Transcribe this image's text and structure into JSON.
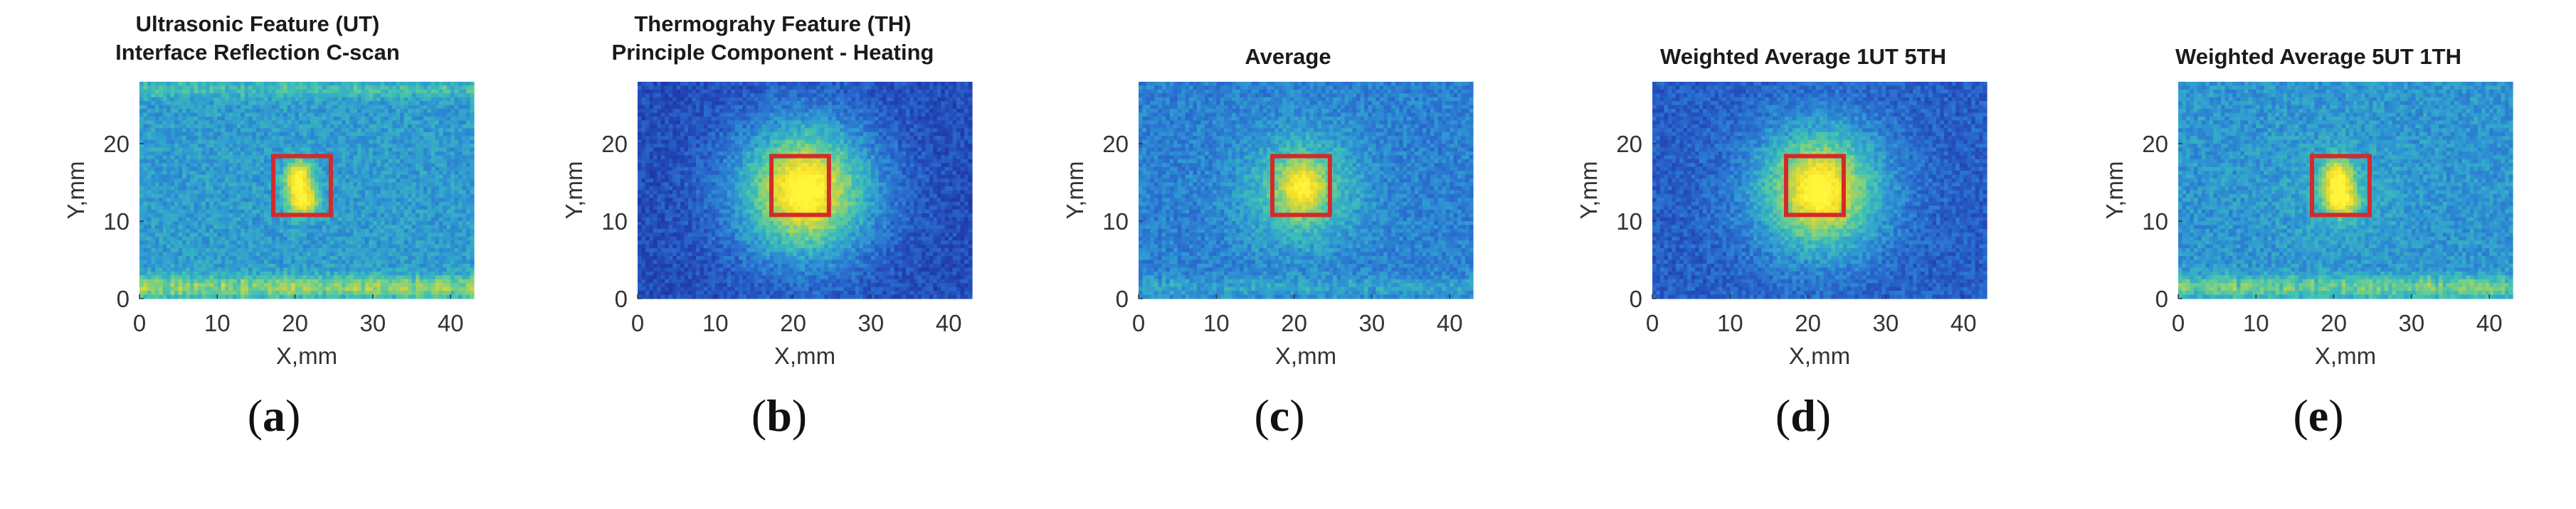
{
  "colors": {
    "colormap": [
      "#1c2a8c",
      "#2247b7",
      "#2a6fd0",
      "#2f9bd2",
      "#3ec0b6",
      "#7fd17f",
      "#c9d444",
      "#f7e128",
      "#fff53a"
    ],
    "defect_box": "#d42a2a"
  },
  "chart_data": [
    {
      "type": "heatmap",
      "id": "a",
      "title_lines": [
        "Ultrasonic Feature (UT)",
        "Interface Reflection C-scan"
      ],
      "xlabel": "X,mm",
      "ylabel": "Y,mm",
      "xlim": [
        0,
        43
      ],
      "ylim": [
        0,
        28
      ],
      "xticks": [
        0,
        10,
        20,
        30,
        40
      ],
      "yticks": [
        0,
        10,
        20
      ],
      "colormap": "parula",
      "background_level": 0.38,
      "hotspots": [
        {
          "x": 20.5,
          "y": 15.5,
          "sx": 1.2,
          "sy": 1.6,
          "amp": 0.62
        },
        {
          "x": 21,
          "y": 12.5,
          "sx": 1.4,
          "sy": 1.2,
          "amp": 0.55
        }
      ],
      "bands": [
        {
          "y": 1.5,
          "width": 1.0,
          "x_from": 0,
          "x_to": 43,
          "amp": 0.28
        },
        {
          "y": 27,
          "width": 0.8,
          "x_from": 0,
          "x_to": 43,
          "amp": 0.12
        }
      ],
      "defect_box": {
        "x0": 17.2,
        "x1": 24.6,
        "y0": 10.8,
        "y1": 18.4
      },
      "panel_label": "a"
    },
    {
      "type": "heatmap",
      "id": "b",
      "title_lines": [
        "Thermograhy Feature (TH)",
        "Principle Component - Heating"
      ],
      "xlabel": "X,mm",
      "ylabel": "Y,mm",
      "xlim": [
        0,
        43
      ],
      "ylim": [
        0,
        28
      ],
      "xticks": [
        0,
        10,
        20,
        30,
        40
      ],
      "yticks": [
        0,
        10,
        20
      ],
      "colormap": "parula",
      "background_level": 0.14,
      "hotspots": [
        {
          "x": 21.5,
          "y": 14,
          "sx": 6.5,
          "sy": 6.5,
          "amp": 0.62
        },
        {
          "x": 21.5,
          "y": 14,
          "sx": 2.5,
          "sy": 2.8,
          "amp": 0.35
        }
      ],
      "bands": [],
      "defect_box": {
        "x0": 17.2,
        "x1": 24.6,
        "y0": 10.8,
        "y1": 18.4
      },
      "panel_label": "b"
    },
    {
      "type": "heatmap",
      "id": "c",
      "title_lines": [
        "Average"
      ],
      "xlabel": "X,mm",
      "ylabel": "Y,mm",
      "xlim": [
        0,
        43
      ],
      "ylim": [
        0,
        28
      ],
      "xticks": [
        0,
        10,
        20,
        30,
        40
      ],
      "yticks": [
        0,
        10,
        20
      ],
      "colormap": "parula",
      "background_level": 0.3,
      "hotspots": [
        {
          "x": 21,
          "y": 14,
          "sx": 5,
          "sy": 5,
          "amp": 0.3
        },
        {
          "x": 21,
          "y": 14.5,
          "sx": 1.8,
          "sy": 2.2,
          "amp": 0.4
        }
      ],
      "bands": [
        {
          "y": 1.5,
          "width": 1.0,
          "x_from": 0,
          "x_to": 43,
          "amp": 0.1
        }
      ],
      "defect_box": {
        "x0": 17.2,
        "x1": 24.6,
        "y0": 10.8,
        "y1": 18.4
      },
      "panel_label": "c"
    },
    {
      "type": "heatmap",
      "id": "d",
      "title_lines": [
        "Weighted Average 1UT 5TH"
      ],
      "xlabel": "X,mm",
      "ylabel": "Y,mm",
      "xlim": [
        0,
        43
      ],
      "ylim": [
        0,
        28
      ],
      "xticks": [
        0,
        10,
        20,
        30,
        40
      ],
      "yticks": [
        0,
        10,
        20
      ],
      "colormap": "parula",
      "background_level": 0.2,
      "hotspots": [
        {
          "x": 21.5,
          "y": 14,
          "sx": 6,
          "sy": 6,
          "amp": 0.55
        },
        {
          "x": 21.5,
          "y": 14,
          "sx": 2.2,
          "sy": 2.6,
          "amp": 0.35
        }
      ],
      "bands": [],
      "defect_box": {
        "x0": 17.2,
        "x1": 24.6,
        "y0": 10.8,
        "y1": 18.4
      },
      "panel_label": "d"
    },
    {
      "type": "heatmap",
      "id": "e",
      "title_lines": [
        "Weighted Average 5UT 1TH"
      ],
      "xlabel": "X,mm",
      "ylabel": "Y,mm",
      "xlim": [
        0,
        43
      ],
      "ylim": [
        0,
        28
      ],
      "xticks": [
        0,
        10,
        20,
        30,
        40
      ],
      "yticks": [
        0,
        10,
        20
      ],
      "colormap": "parula",
      "background_level": 0.36,
      "hotspots": [
        {
          "x": 20.5,
          "y": 15.5,
          "sx": 1.3,
          "sy": 1.7,
          "amp": 0.58
        },
        {
          "x": 21,
          "y": 12.5,
          "sx": 1.5,
          "sy": 1.3,
          "amp": 0.5
        },
        {
          "x": 21,
          "y": 14,
          "sx": 5,
          "sy": 5,
          "amp": 0.08
        }
      ],
      "bands": [
        {
          "y": 1.5,
          "width": 1.0,
          "x_from": 0,
          "x_to": 43,
          "amp": 0.24
        }
      ],
      "defect_box": {
        "x0": 17.2,
        "x1": 24.6,
        "y0": 10.8,
        "y1": 18.4
      },
      "panel_label": "e"
    }
  ]
}
